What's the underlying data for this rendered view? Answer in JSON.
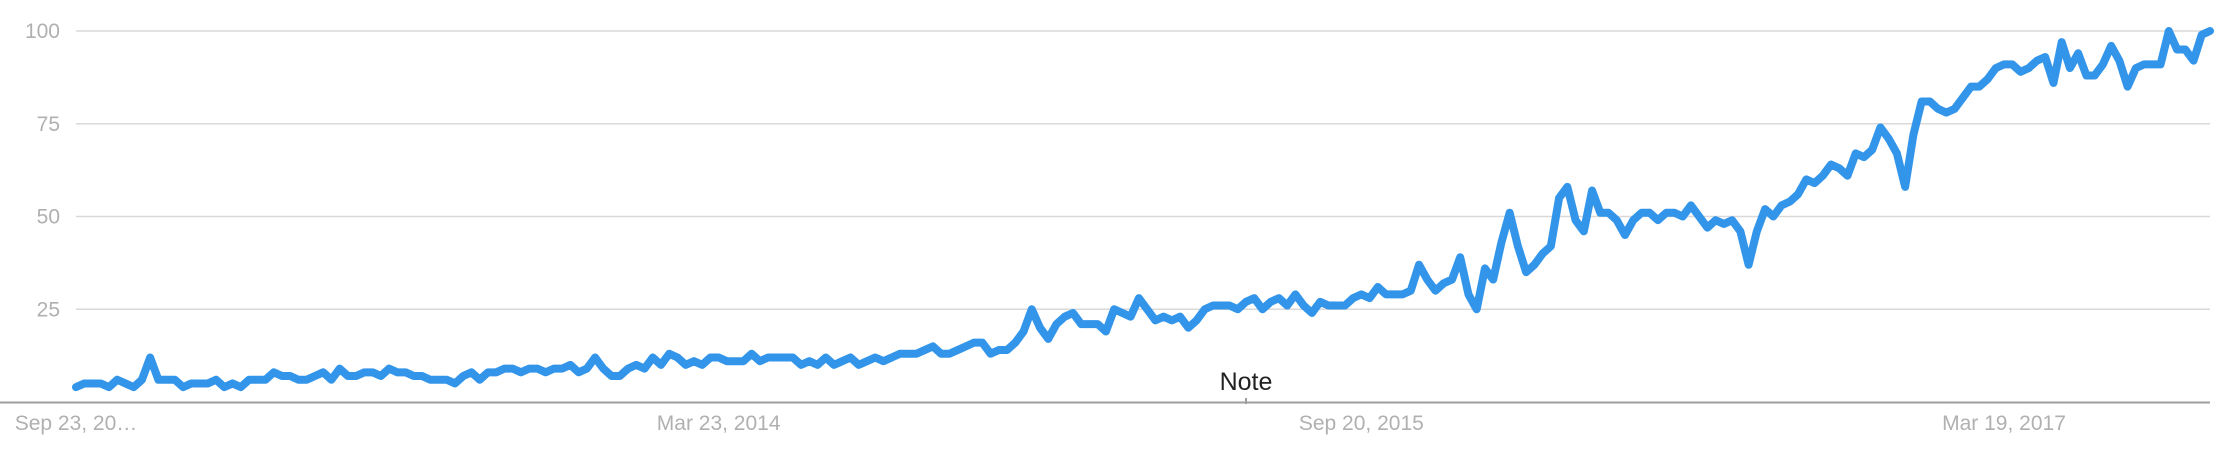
{
  "chart_data": {
    "type": "line",
    "title": "",
    "xlabel": "",
    "ylabel": "",
    "ylim": [
      0,
      100
    ],
    "grid": true,
    "y_ticks": [
      "25",
      "50",
      "75",
      "100"
    ],
    "x_ticks": [
      "Sep 23, 20…",
      "Mar 23, 2014",
      "Sep 20, 2015",
      "Mar 19, 2017"
    ],
    "x_tick_positions": [
      0,
      78,
      156,
      234
    ],
    "annotation": {
      "label": "Note",
      "x": 142
    },
    "colors": {
      "series": "#3395ea",
      "grid": "#d9d9d9",
      "tick_text": "#b0b0b0",
      "note_text": "#222222"
    },
    "series": [
      {
        "values": [
          4,
          5,
          5,
          5,
          4,
          6,
          5,
          4,
          6,
          12,
          6,
          6,
          6,
          4,
          5,
          5,
          5,
          6,
          4,
          5,
          4,
          6,
          6,
          6,
          8,
          7,
          7,
          6,
          6,
          7,
          8,
          6,
          9,
          7,
          7,
          8,
          8,
          7,
          9,
          8,
          8,
          7,
          7,
          6,
          6,
          6,
          5,
          7,
          8,
          6,
          8,
          8,
          9,
          9,
          8,
          9,
          9,
          8,
          9,
          9,
          10,
          8,
          9,
          12,
          9,
          7,
          7,
          9,
          10,
          9,
          12,
          10,
          13,
          12,
          10,
          11,
          10,
          12,
          12,
          11,
          11,
          11,
          13,
          11,
          12,
          12,
          12,
          12,
          10,
          11,
          10,
          12,
          10,
          11,
          12,
          10,
          11,
          12,
          11,
          12,
          13,
          13,
          13,
          14,
          15,
          13,
          13,
          14,
          15,
          16,
          16,
          13,
          14,
          14,
          16,
          19,
          25,
          20,
          17,
          21,
          23,
          24,
          21,
          21,
          21,
          19,
          25,
          24,
          23,
          28,
          25,
          22,
          23,
          22,
          23,
          20,
          22,
          25,
          26,
          26,
          26,
          25,
          27,
          28,
          25,
          27,
          28,
          26,
          29,
          26,
          24,
          27,
          26,
          26,
          26,
          28,
          29,
          28,
          31,
          29,
          29,
          29,
          30,
          37,
          33,
          30,
          32,
          33,
          39,
          29,
          25,
          36,
          33,
          43,
          51,
          42,
          35,
          37,
          40,
          42,
          55,
          58,
          49,
          46,
          57,
          51,
          51,
          49,
          45,
          49,
          51,
          51,
          49,
          51,
          51,
          50,
          53,
          50,
          47,
          49,
          48,
          49,
          46,
          37,
          46,
          52,
          50,
          53,
          54,
          56,
          60,
          59,
          61,
          64,
          63,
          61,
          67,
          66,
          68,
          74,
          71,
          67,
          58,
          72,
          81,
          81,
          79,
          78,
          79,
          82,
          85,
          85,
          87,
          90,
          91,
          91,
          89,
          90,
          92,
          93,
          86,
          97,
          90,
          94,
          88,
          88,
          91,
          96,
          92,
          85,
          90,
          91,
          91,
          91,
          100,
          95,
          95,
          92,
          99,
          100
        ]
      }
    ]
  }
}
